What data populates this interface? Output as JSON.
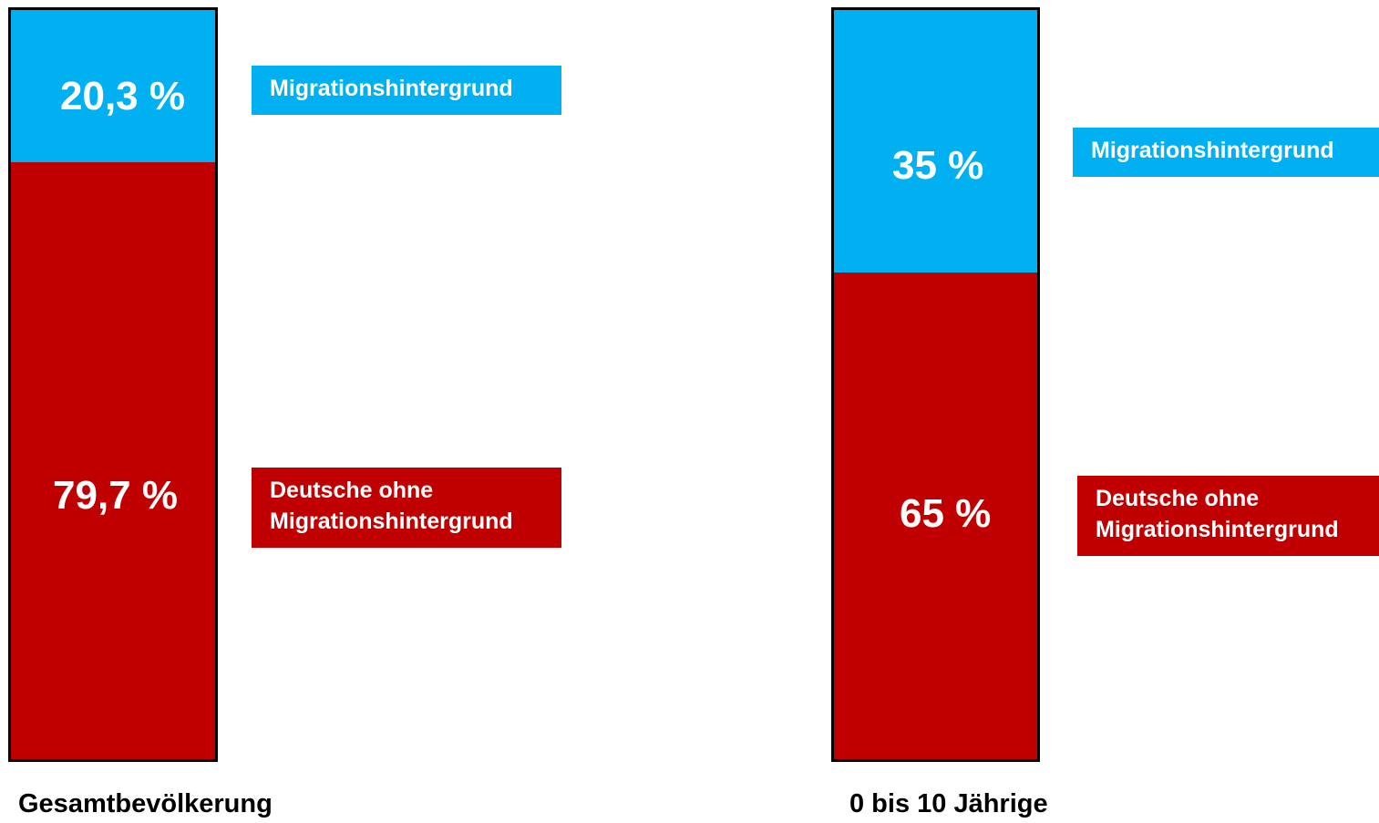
{
  "chart_data": {
    "type": "bar",
    "stacked": true,
    "percent": true,
    "categories": [
      "Gesamtbevölkerung",
      "0 bis 10 Jährige"
    ],
    "series": [
      {
        "name_lines": [
          "Migrationshintergrund"
        ],
        "color": "#00b0f0",
        "values": [
          20.3,
          35
        ],
        "labels": [
          "20,3 %",
          "35 %"
        ]
      },
      {
        "name_lines": [
          "Deutsche ohne",
          "Migrationshintergrund"
        ],
        "color": "#c00000",
        "values": [
          79.7,
          65
        ],
        "labels": [
          "79,7 %",
          "65 %"
        ]
      }
    ]
  }
}
